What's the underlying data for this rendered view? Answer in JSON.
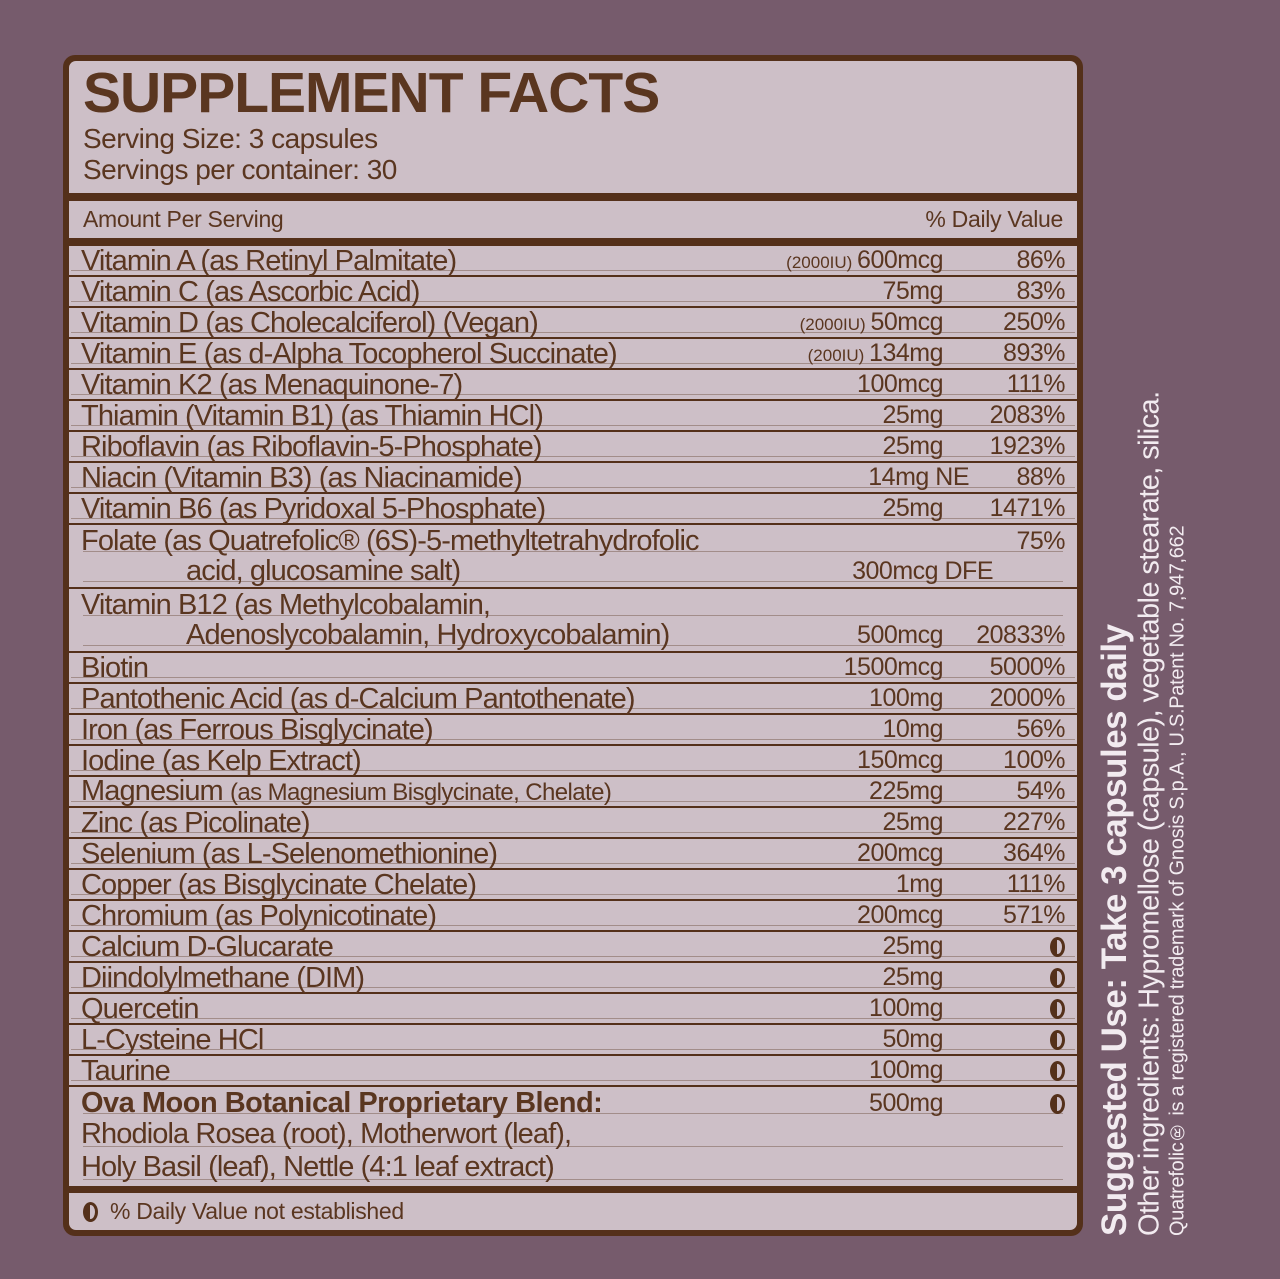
{
  "colors": {
    "background": "#765B6C",
    "panel_fill": "#CDBFC7",
    "ink_brown": "#54301A",
    "sidebar_text": "#F2EBF0"
  },
  "header": {
    "title": "SUPPLEMENT FACTS",
    "serving_size": "Serving Size: 3 capsules",
    "servings_per_container": "Servings per container: 30"
  },
  "columns": {
    "amount": "Amount Per Serving",
    "daily_value": "% Daily Value"
  },
  "rows": [
    {
      "name": "Vitamin A (as Retinyl Palmitate)",
      "iu": "(2000IU)",
      "amount": "600mcg",
      "dv": "86%"
    },
    {
      "name": "Vitamin C (as Ascorbic Acid)",
      "amount": "75mg",
      "dv": "83%"
    },
    {
      "name": "Vitamin D (as Cholecalciferol) (Vegan)",
      "iu": "(2000IU)",
      "amount": "50mcg",
      "dv": "250%"
    },
    {
      "name": "Vitamin E (as d-Alpha Tocopherol Succinate)",
      "iu": "(200IU)",
      "amount": "134mg",
      "dv": "893%"
    },
    {
      "name": "Vitamin K2 (as Menaquinone-7)",
      "amount": "100mcg",
      "dv": "111%"
    },
    {
      "name": "Thiamin (Vitamin B1) (as Thiamin HCl)",
      "amount": "25mg",
      "dv": "2083%"
    },
    {
      "name": "Riboflavin (as Riboflavin-5-Phosphate)",
      "amount": "25mg",
      "dv": "1923%"
    },
    {
      "name": "Niacin (Vitamin B3) (as Niacinamide)",
      "amount": "14mg NE",
      "amt_class": "wide",
      "dv": "88%"
    },
    {
      "name": "Vitamin B6 (as Pyridoxal 5-Phosphate)",
      "amount": "25mg",
      "dv": "1471%"
    },
    {
      "name": "Folate (as Quatrefolic® (6S)-5-methyltetrahydrofolic",
      "dv": "75%",
      "line2": {
        "text": "acid, glucosamine salt)",
        "amount": "300mcg DFE",
        "amt_class": "wider",
        "dv": ""
      }
    },
    {
      "name": "Vitamin B12 (as Methylcobalamin,",
      "line2": {
        "text": "Adenoslycobalamin, Hydroxycobalamin)",
        "amount": "500mcg",
        "dv": "20833%"
      }
    },
    {
      "name": "Biotin",
      "amount": "1500mcg",
      "dv": "5000%"
    },
    {
      "name": "Pantothenic Acid (as d-Calcium Pantothenate)",
      "amount": "100mg",
      "dv": "2000%"
    },
    {
      "name": "Iron (as Ferrous Bisglycinate)",
      "amount": "10mg",
      "dv": "56%"
    },
    {
      "name": "Iodine (as Kelp Extract)",
      "amount": "150mcg",
      "dv": "100%"
    },
    {
      "name": "Magnesium ",
      "name_small": "(as Magnesium Bisglycinate, Chelate)",
      "amount": "225mg",
      "dv": "54%"
    },
    {
      "name": "Zinc (as Picolinate)",
      "amount": "25mg",
      "dv": "227%"
    },
    {
      "name": "Selenium (as L-Selenomethionine)",
      "amount": "200mcg",
      "dv": "364%"
    },
    {
      "name": "Copper (as Bisglycinate Chelate)",
      "amount": "1mg",
      "dv": "111%"
    },
    {
      "name": "Chromium (as Polynicotinate)",
      "amount": "200mcg",
      "dv": "571%"
    },
    {
      "name": "Calcium D-Glucarate",
      "amount": "25mg",
      "nde": true
    },
    {
      "name": "Diindolylmethane (DIM)",
      "amount": "25mg",
      "nde": true
    },
    {
      "name": "Quercetin",
      "amount": "100mg",
      "nde": true
    },
    {
      "name": "L-Cysteine HCl",
      "amount": "50mg",
      "nde": true
    },
    {
      "name": "Taurine",
      "amount": "100mg",
      "nde": true
    }
  ],
  "blend": {
    "name": "Ova Moon Botanical Proprietary Blend:",
    "amount": "500mg",
    "nde": true,
    "ingredients": [
      "Rhodiola Rosea (root), Motherwort (leaf),",
      "Holy Basil (leaf), Nettle (4:1 leaf extract)"
    ]
  },
  "footnote": "% Daily Value not established",
  "sidebar": {
    "suggested_use": "Suggested Use: Take 3 capsules daily",
    "other_ingredients": "Other ingredients:  Hypromellose (capsule), vegetable stearate, silica.",
    "trademark": "Quatrefolic® is a registered trademark of Gnosis S.p.A., U.S.Patent No. 7,947,662"
  }
}
